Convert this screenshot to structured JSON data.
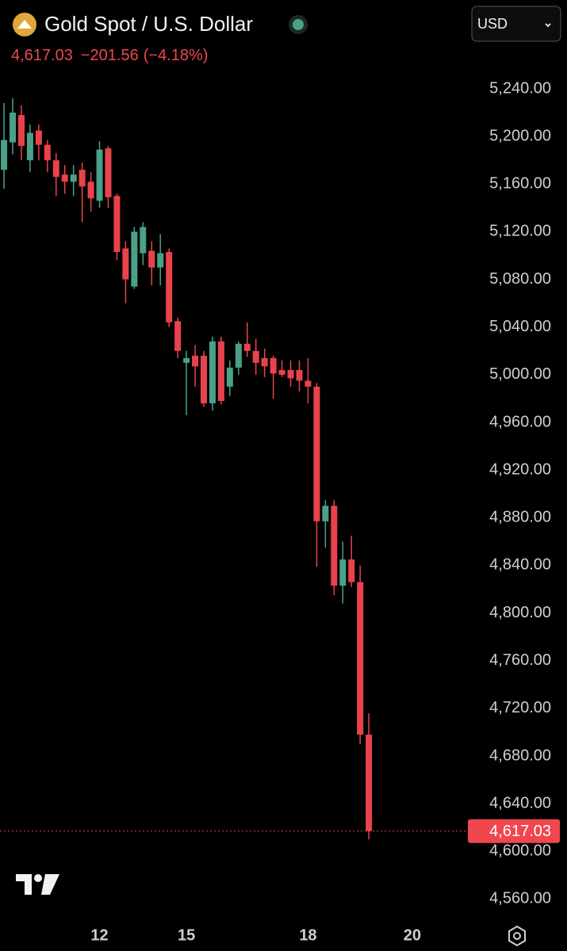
{
  "toolbar": {
    "currency": "USD"
  },
  "chart_data": {
    "type": "candlestick",
    "title": "Gold Spot / U.S. Dollar",
    "last_price": {
      "value": 4617.03,
      "label": "4,617.03"
    },
    "change": {
      "value": -201.56,
      "label": "−201.56"
    },
    "change_percent": {
      "value": -4.18,
      "label": "(−4.18%)"
    },
    "up_color": "#4aa088",
    "down_color": "#e8434c",
    "grid": false,
    "open": [
      5172,
      5195,
      5218,
      5180,
      5205,
      5193,
      5180,
      5168,
      5162,
      5172,
      5162,
      5146,
      5190,
      5150,
      5106,
      5074,
      5102,
      5104,
      5090,
      5103,
      5045,
      5010,
      5016,
      5016,
      4976,
      5028,
      4990,
      5006,
      5026,
      5020,
      5014,
      5014,
      5004,
      5004,
      5004,
      4995,
      4990,
      4877,
      4890,
      4823,
      4845,
      4826,
      4698
    ],
    "high": [
      5228,
      5232,
      5226,
      5210,
      5210,
      5197,
      5186,
      5176,
      5176,
      5178,
      5170,
      5196,
      5192,
      5152,
      5112,
      5124,
      5128,
      5112,
      5118,
      5106,
      5048,
      5020,
      5025,
      5020,
      5032,
      5032,
      5012,
      5028,
      5044,
      5030,
      5022,
      5016,
      5012,
      5012,
      5012,
      5014,
      4993,
      4895,
      4895,
      4860,
      4865,
      4840,
      4716
    ],
    "low": [
      5156,
      5185,
      5180,
      5170,
      5180,
      5170,
      5150,
      5152,
      5150,
      5128,
      5137,
      5140,
      5140,
      5096,
      5060,
      5072,
      5092,
      5075,
      5075,
      5040,
      5014,
      4966,
      4990,
      4973,
      4970,
      4975,
      4982,
      5000,
      5015,
      5000,
      4998,
      4980,
      4998,
      4990,
      4986,
      4976,
      4839,
      4855,
      4815,
      4808,
      4822,
      4690,
      4610
    ],
    "close": [
      5197,
      5220,
      5192,
      5203,
      5193,
      5180,
      5166,
      5162,
      5168,
      5158,
      5148,
      5189,
      5149,
      5103,
      5080,
      5120,
      5124,
      5090,
      5102,
      5044,
      5020,
      5014,
      5007,
      4976,
      5028,
      4978,
      5006,
      5026,
      5020,
      5010,
      5007,
      5001,
      5000,
      4997,
      4995,
      4990,
      4877,
      4890,
      4823,
      4845,
      4826,
      4698,
      4617.03
    ],
    "xlim": [
      -0.46,
      53.4
    ],
    "xticks": [
      {
        "value": 11,
        "label": "12"
      },
      {
        "value": 21,
        "label": "15"
      },
      {
        "value": 35,
        "label": "18"
      },
      {
        "value": 47,
        "label": "20"
      }
    ],
    "ylim": [
      4543,
      5314.5
    ],
    "yticks": [
      {
        "value": 5240,
        "label": "5,240.00"
      },
      {
        "value": 5200,
        "label": "5,200.00"
      },
      {
        "value": 5160,
        "label": "5,160.00"
      },
      {
        "value": 5120,
        "label": "5,120.00"
      },
      {
        "value": 5080,
        "label": "5,080.00"
      },
      {
        "value": 5040,
        "label": "5,040.00"
      },
      {
        "value": 5000,
        "label": "5,000.00"
      },
      {
        "value": 4960,
        "label": "4,960.00"
      },
      {
        "value": 4920,
        "label": "4,920.00"
      },
      {
        "value": 4880,
        "label": "4,880.00"
      },
      {
        "value": 4840,
        "label": "4,840.00"
      },
      {
        "value": 4800,
        "label": "4,800.00"
      },
      {
        "value": 4760,
        "label": "4,760.00"
      },
      {
        "value": 4720,
        "label": "4,720.00"
      },
      {
        "value": 4680,
        "label": "4,680.00"
      },
      {
        "value": 4640,
        "label": "4,640.00"
      },
      {
        "value": 4600,
        "label": "4,600.00"
      },
      {
        "value": 4560,
        "label": "4,560.00"
      }
    ]
  }
}
